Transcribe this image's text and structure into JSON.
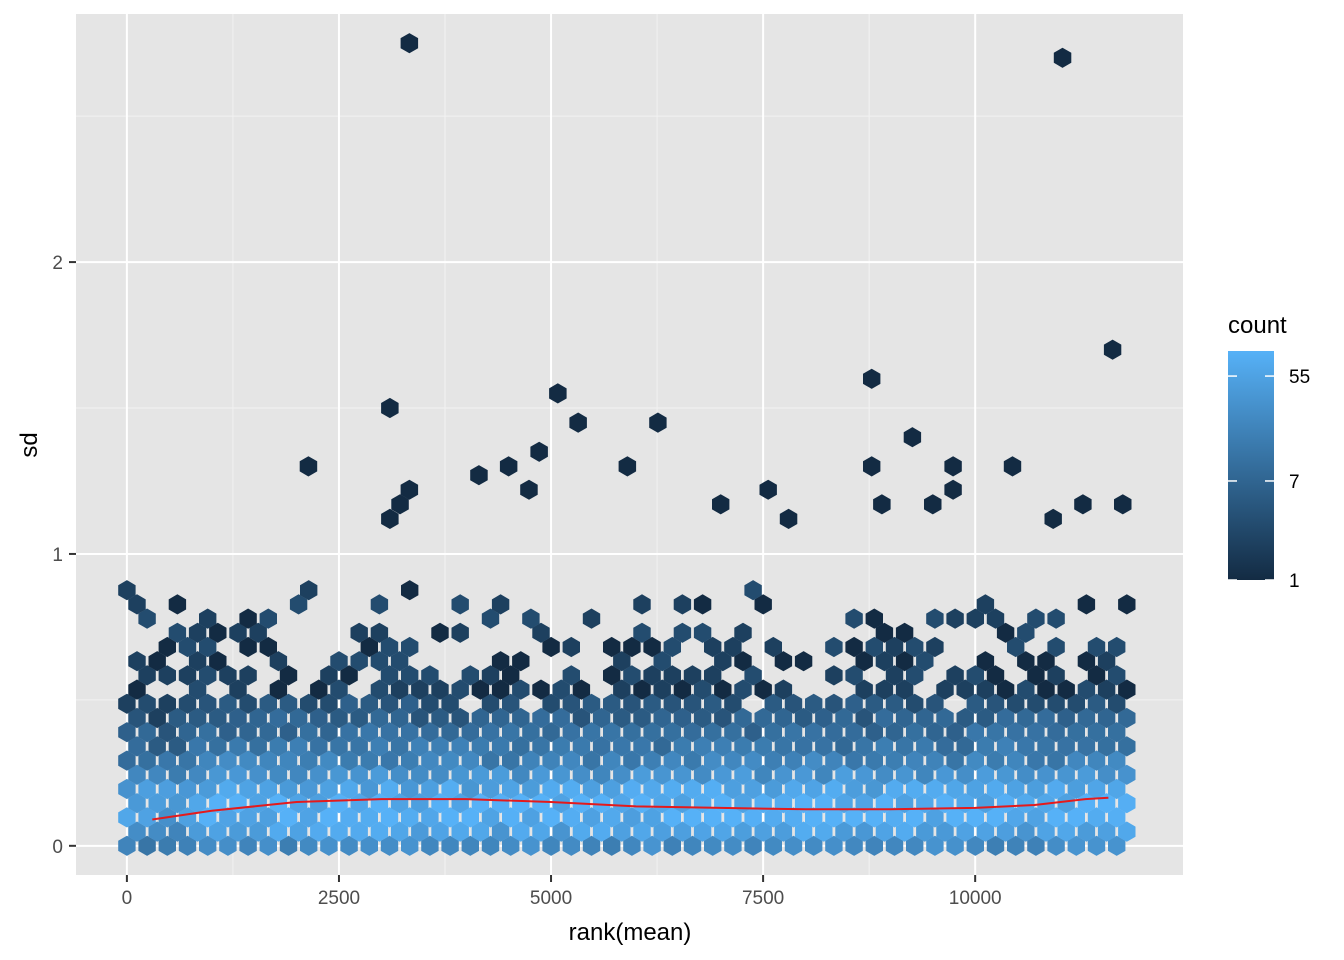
{
  "chart_data": {
    "type": "hexbin",
    "xlabel": "rank(mean)",
    "ylabel": "sd",
    "xlim": [
      -600,
      12450
    ],
    "ylim": [
      -0.1,
      2.85
    ],
    "x_ticks": [
      0,
      2500,
      5000,
      7500,
      10000
    ],
    "x_tick_labels": [
      "0",
      "2500",
      "5000",
      "7500",
      "10000"
    ],
    "y_ticks": [
      0,
      1,
      2
    ],
    "y_tick_labels": [
      "0",
      "1",
      "2"
    ],
    "grid": true,
    "panel_background": "#e5e5e5",
    "legend": {
      "title": "count",
      "position": "right",
      "scale": "log",
      "breaks": [
        1,
        7,
        55
      ],
      "break_labels": [
        "1",
        "7",
        "55"
      ],
      "range": [
        1,
        90
      ],
      "color_low": "#132b43",
      "color_high": "#56b1f7"
    },
    "hex_bins": {
      "x_range": [
        0,
        11900
      ],
      "y_range": [
        0,
        2.8
      ],
      "outliers": [
        {
          "x": 3330,
          "y": 2.75
        },
        {
          "x": 11030,
          "y": 2.7
        },
        {
          "x": 11620,
          "y": 1.7
        },
        {
          "x": 8780,
          "y": 1.6
        },
        {
          "x": 5080,
          "y": 1.55
        },
        {
          "x": 3100,
          "y": 1.5
        },
        {
          "x": 5320,
          "y": 1.45
        },
        {
          "x": 6260,
          "y": 1.45
        },
        {
          "x": 9260,
          "y": 1.4
        },
        {
          "x": 4860,
          "y": 1.35
        },
        {
          "x": 2140,
          "y": 1.3
        },
        {
          "x": 4500,
          "y": 1.3
        },
        {
          "x": 5900,
          "y": 1.3
        },
        {
          "x": 8780,
          "y": 1.3
        },
        {
          "x": 9740,
          "y": 1.3
        },
        {
          "x": 10440,
          "y": 1.3
        },
        {
          "x": 4150,
          "y": 1.27
        },
        {
          "x": 3330,
          "y": 1.22
        },
        {
          "x": 4740,
          "y": 1.22
        },
        {
          "x": 7560,
          "y": 1.22
        },
        {
          "x": 9740,
          "y": 1.22
        },
        {
          "x": 3220,
          "y": 1.17
        },
        {
          "x": 7000,
          "y": 1.17
        },
        {
          "x": 8900,
          "y": 1.17
        },
        {
          "x": 9500,
          "y": 1.17
        },
        {
          "x": 11270,
          "y": 1.17
        },
        {
          "x": 11740,
          "y": 1.17
        },
        {
          "x": 3100,
          "y": 1.12
        },
        {
          "x": 7800,
          "y": 1.12
        },
        {
          "x": 10920,
          "y": 1.12
        }
      ],
      "trend": {
        "color": "#e41a1c",
        "x": [
          300,
          1000,
          2000,
          3000,
          4000,
          5000,
          6000,
          7000,
          8000,
          9000,
          10000,
          10700,
          11300,
          11570
        ],
        "y": [
          0.09,
          0.12,
          0.15,
          0.16,
          0.16,
          0.15,
          0.135,
          0.13,
          0.125,
          0.125,
          0.13,
          0.14,
          0.16,
          0.165
        ]
      }
    }
  }
}
